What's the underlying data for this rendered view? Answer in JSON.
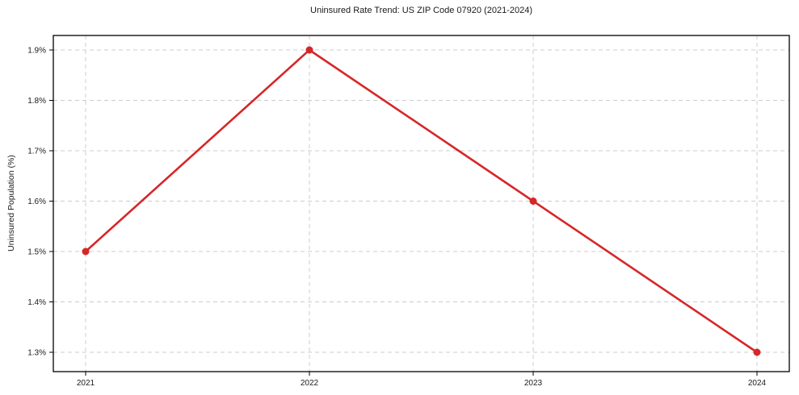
{
  "page": {
    "background_color": "#ffffff"
  },
  "chart_data": {
    "type": "line",
    "title": "Uninsured Rate Trend: US ZIP Code 07920 (2021-2024)",
    "xlabel": "",
    "ylabel": "Uninsured Population (%)",
    "x": [
      2021,
      2022,
      2023,
      2024
    ],
    "x_tick_labels": [
      "2021",
      "2022",
      "2023",
      "2024"
    ],
    "series": [
      {
        "name": "Uninsured Population (%)",
        "values": [
          1.5,
          1.9,
          1.6,
          1.3
        ],
        "color": "#d62728",
        "marker": "circle"
      }
    ],
    "y_ticks": [
      1.3,
      1.4,
      1.5,
      1.6,
      1.7,
      1.8,
      1.9
    ],
    "y_tick_labels": [
      "1.3%",
      "1.4%",
      "1.5%",
      "1.6%",
      "1.7%",
      "1.8%",
      "1.9%"
    ],
    "ylim": [
      1.3,
      1.9
    ],
    "grid": true,
    "grid_color": "#cccccc",
    "axis_color": "#000000",
    "text_color": "#1a1a1a",
    "legend_position": "none"
  }
}
